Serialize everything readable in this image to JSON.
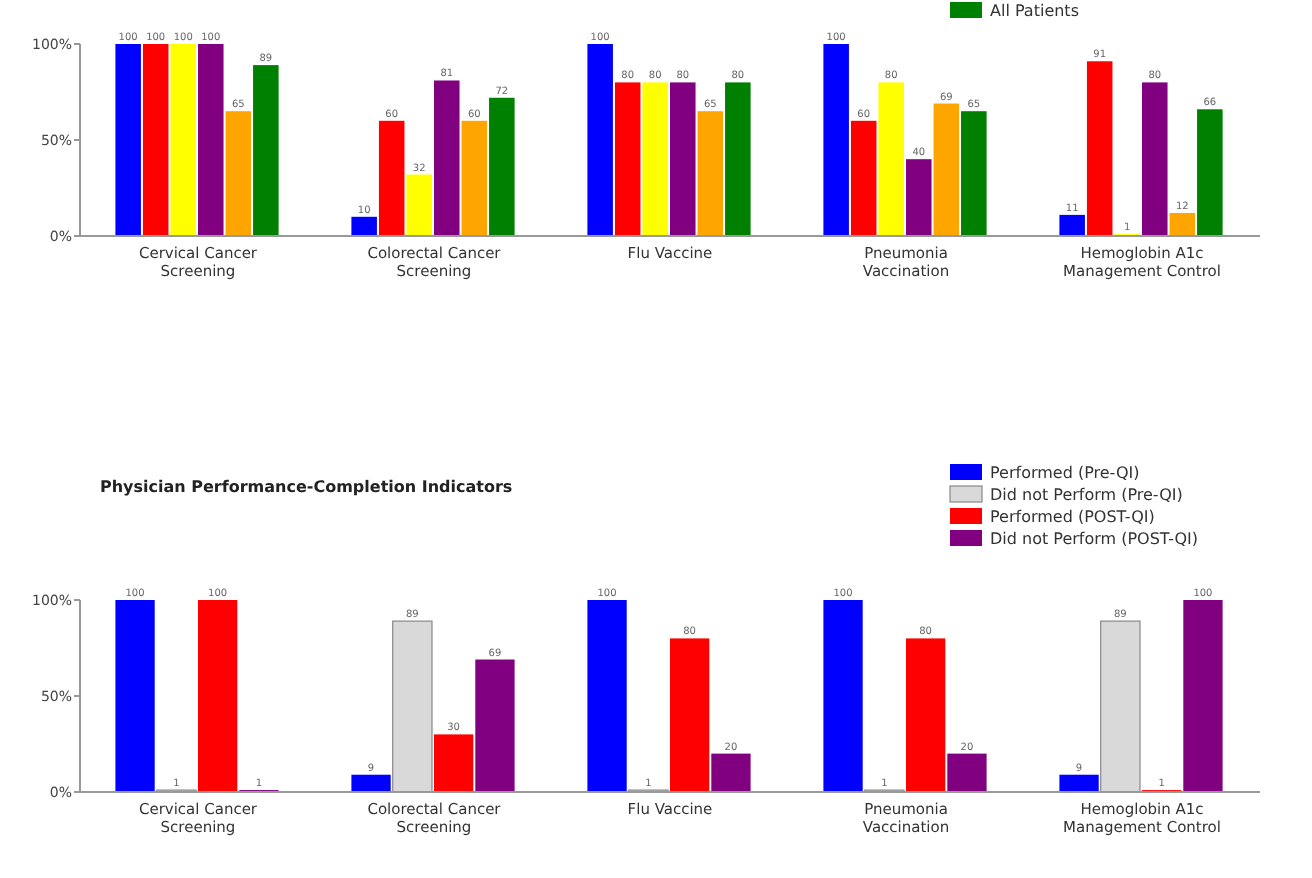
{
  "chart_data": [
    {
      "type": "bar",
      "categories": [
        "Cervical Cancer Screening",
        "Colorectal Cancer Screening",
        "Flu Vaccine",
        "Pneumonia Vaccination",
        "Hemoglobin A1c Management Control"
      ],
      "series": [
        {
          "color": "#0000ff",
          "values": [
            100,
            10,
            100,
            100,
            11
          ]
        },
        {
          "color": "#ff0000",
          "values": [
            100,
            60,
            80,
            60,
            91
          ]
        },
        {
          "color": "#ffff00",
          "values": [
            100,
            32,
            80,
            80,
            1
          ]
        },
        {
          "color": "#800080",
          "values": [
            100,
            81,
            80,
            40,
            80
          ]
        },
        {
          "color": "#ffa500",
          "values": [
            65,
            60,
            65,
            69,
            12
          ]
        },
        {
          "name": "All Patients",
          "color": "#008000",
          "values": [
            89,
            72,
            80,
            65,
            66
          ]
        }
      ],
      "ylim": [
        0,
        100
      ],
      "yticks": [
        {
          "value": 0,
          "label": "0%"
        },
        {
          "value": 50,
          "label": "50%"
        },
        {
          "value": 100,
          "label": "100%"
        }
      ],
      "data_labels": true,
      "legend": "top right"
    },
    {
      "type": "bar",
      "title": "Physician Performance-Completion Indicators",
      "categories": [
        "Cervical Cancer Screening",
        "Colorectal Cancer Screening",
        "Flu Vaccine",
        "Pneumonia Vaccination",
        "Hemoglobin A1c Management Control"
      ],
      "series": [
        {
          "name": "Performed (Pre-QI)",
          "color": "#0000ff",
          "values": [
            100,
            9,
            100,
            100,
            9
          ]
        },
        {
          "name": "Did not Perform (Pre-QI)",
          "color": "#d9d9d9",
          "values": [
            1,
            89,
            1,
            1,
            89
          ]
        },
        {
          "name": "Performed (POST-QI)",
          "color": "#ff0000",
          "values": [
            100,
            30,
            80,
            80,
            1
          ]
        },
        {
          "name": "Did not Perform (POST-QI)",
          "color": "#800080",
          "values": [
            1,
            69,
            20,
            20,
            100
          ]
        }
      ],
      "ylim": [
        0,
        100
      ],
      "yticks": [
        {
          "value": 0,
          "label": "0%"
        },
        {
          "value": 50,
          "label": "50%"
        },
        {
          "value": 100,
          "label": "100%"
        }
      ],
      "data_labels": true,
      "legend": "top right"
    }
  ]
}
